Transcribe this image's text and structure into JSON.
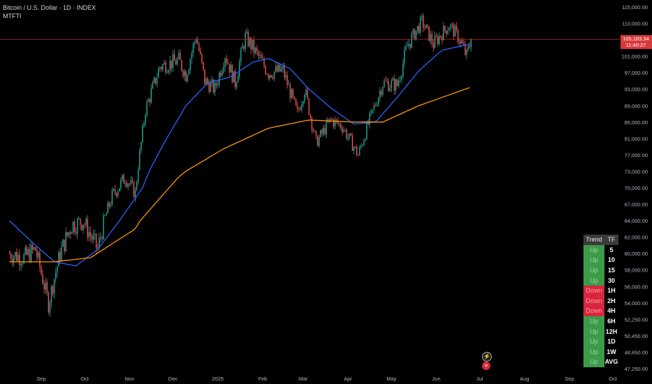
{
  "header": {
    "title": "Bitcoin / U.S. Dollar · 1D · INDEX",
    "indicator": "MTFTI"
  },
  "price_label": {
    "price": "105,183.34",
    "countdown": "11:40:27"
  },
  "colors": {
    "up": "#26a69a",
    "down": "#ef5350",
    "ma_fast": "#2962ff",
    "ma_slow": "#ff9800",
    "price_line": "#d83a3a",
    "trend_up": "#3d9a49",
    "trend_down": "#d7263d"
  },
  "icons": [
    "flash-icon",
    "us-flag-icon"
  ],
  "trend_table": {
    "headers": [
      "Trend",
      "TF"
    ],
    "rows": [
      {
        "trend": "Up",
        "tf": "5"
      },
      {
        "trend": "Up",
        "tf": "10"
      },
      {
        "trend": "Up",
        "tf": "15"
      },
      {
        "trend": "Up",
        "tf": "30"
      },
      {
        "trend": "Down",
        "tf": "1H"
      },
      {
        "trend": "Down",
        "tf": "2H"
      },
      {
        "trend": "Down",
        "tf": "4H"
      },
      {
        "trend": "Up",
        "tf": "6H"
      },
      {
        "trend": "Up",
        "tf": "12H"
      },
      {
        "trend": "Up",
        "tf": "1D"
      },
      {
        "trend": "Up",
        "tf": "1W"
      },
      {
        "trend": "Up",
        "tf": "AVG"
      }
    ]
  },
  "chart_data": {
    "type": "candlestick",
    "x_ticks": [
      "Sep",
      "Oct",
      "Nov",
      "Dec",
      "2025",
      "Feb",
      "Mar",
      "Apr",
      "May",
      "Jun",
      "Jul",
      "Aug",
      "Sep",
      "Oct"
    ],
    "y_ticks": [
      "115,000.00",
      "110,000.00",
      "105,000.00",
      "101,000.00",
      "97,000.00",
      "93,000.00",
      "89,000.00",
      "85,000.00",
      "81,000.00",
      "77,000.00",
      "73,000.00",
      "70,000.00",
      "67,000.00",
      "64,000.00",
      "62,000.00",
      "60,000.00",
      "58,000.00",
      "56,000.00",
      "54,000.00",
      "52,250.00",
      "50,450.00",
      "48,850.00",
      "47,250.00"
    ],
    "last_price": 105183.34,
    "price_path": [
      [
        "2024-08-10",
        60000
      ],
      [
        "2024-08-20",
        59500
      ],
      [
        "2024-08-28",
        60500
      ],
      [
        "2024-09-06",
        54000
      ],
      [
        "2024-09-14",
        60000
      ],
      [
        "2024-09-22",
        63500
      ],
      [
        "2024-09-30",
        64000
      ],
      [
        "2024-10-10",
        60500
      ],
      [
        "2024-10-20",
        68500
      ],
      [
        "2024-10-29",
        72000
      ],
      [
        "2024-11-05",
        69000
      ],
      [
        "2024-11-12",
        88000
      ],
      [
        "2024-11-22",
        98500
      ],
      [
        "2024-12-05",
        100000
      ],
      [
        "2024-12-10",
        96500
      ],
      [
        "2024-12-17",
        106000
      ],
      [
        "2024-12-23",
        95000
      ],
      [
        "2024-12-30",
        93000
      ],
      [
        "2025-01-06",
        101500
      ],
      [
        "2025-01-13",
        94500
      ],
      [
        "2025-01-20",
        106000
      ],
      [
        "2025-01-27",
        102000
      ],
      [
        "2025-02-05",
        97000
      ],
      [
        "2025-02-15",
        97500
      ],
      [
        "2025-02-25",
        87000
      ],
      [
        "2025-03-02",
        93000
      ],
      [
        "2025-03-10",
        80000
      ],
      [
        "2025-03-20",
        85500
      ],
      [
        "2025-03-28",
        84000
      ],
      [
        "2025-04-08",
        77000
      ],
      [
        "2025-04-15",
        84500
      ],
      [
        "2025-04-25",
        94500
      ],
      [
        "2025-05-05",
        94000
      ],
      [
        "2025-05-12",
        103500
      ],
      [
        "2025-05-22",
        110500
      ],
      [
        "2025-05-30",
        104000
      ],
      [
        "2025-06-10",
        109500
      ],
      [
        "2025-06-16",
        106000
      ],
      [
        "2025-06-22",
        101000
      ],
      [
        "2025-06-25",
        105183
      ]
    ],
    "ma_fast_path": [
      [
        "2024-08-10",
        64000
      ],
      [
        "2024-08-25",
        61500
      ],
      [
        "2024-09-10",
        59000
      ],
      [
        "2024-09-25",
        58500
      ],
      [
        "2024-10-10",
        60500
      ],
      [
        "2024-10-25",
        64000
      ],
      [
        "2024-11-10",
        70000
      ],
      [
        "2024-11-25",
        80000
      ],
      [
        "2024-12-10",
        89000
      ],
      [
        "2024-12-25",
        94500
      ],
      [
        "2025-01-10",
        96000
      ],
      [
        "2025-01-25",
        99500
      ],
      [
        "2025-02-05",
        100500
      ],
      [
        "2025-02-20",
        98000
      ],
      [
        "2025-03-05",
        93000
      ],
      [
        "2025-03-20",
        88500
      ],
      [
        "2025-04-05",
        84500
      ],
      [
        "2025-04-20",
        85000
      ],
      [
        "2025-05-05",
        91000
      ],
      [
        "2025-05-20",
        97500
      ],
      [
        "2025-06-05",
        102500
      ],
      [
        "2025-06-25",
        104000
      ]
    ],
    "ma_slow_path": [
      [
        "2024-08-10",
        59000
      ],
      [
        "2024-09-10",
        59000
      ],
      [
        "2024-10-05",
        59500
      ],
      [
        "2024-11-05",
        63000
      ],
      [
        "2024-12-05",
        72000
      ],
      [
        "2025-01-05",
        78500
      ],
      [
        "2025-02-05",
        83500
      ],
      [
        "2025-03-05",
        85500
      ],
      [
        "2025-04-05",
        85000
      ],
      [
        "2025-04-25",
        85000
      ],
      [
        "2025-05-20",
        89000
      ],
      [
        "2025-06-25",
        93500
      ]
    ]
  }
}
